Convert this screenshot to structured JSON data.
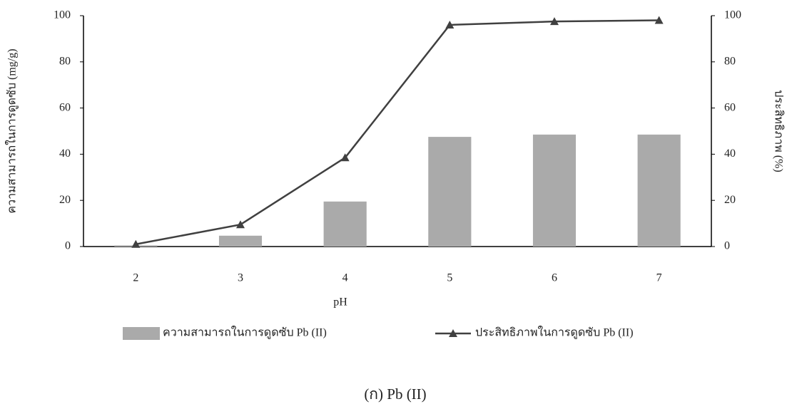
{
  "chart_data": {
    "type": "combo",
    "x_label": "pH",
    "y_label": "ความสามารถในการดูดซับ (mg/g)",
    "y2_label": "ประสิทธิภาพ (%)",
    "caption": "(ก) Pb (II)",
    "categories": [
      "2",
      "3",
      "4",
      "5",
      "6",
      "7"
    ],
    "series": [
      {
        "name": "ความสามารถในการดูดซับ Pb (II)",
        "type": "bar",
        "color": "#aaaaaa",
        "values": [
          0.5,
          4.7,
          19.5,
          47.5,
          48.5,
          48.5
        ]
      },
      {
        "name": "ประสิทธิภาพในการดูดซับ Pb (II)",
        "type": "line",
        "axis": "y2",
        "color": "#404040",
        "values": [
          1,
          9.5,
          38.5,
          96,
          97.5,
          98
        ]
      }
    ],
    "ylim": [
      0,
      100
    ],
    "yticks": [
      0,
      20,
      40,
      60,
      80,
      100
    ],
    "y2lim": [
      0,
      100
    ],
    "y2ticks": [
      0,
      20,
      40,
      60,
      80,
      100
    ]
  }
}
